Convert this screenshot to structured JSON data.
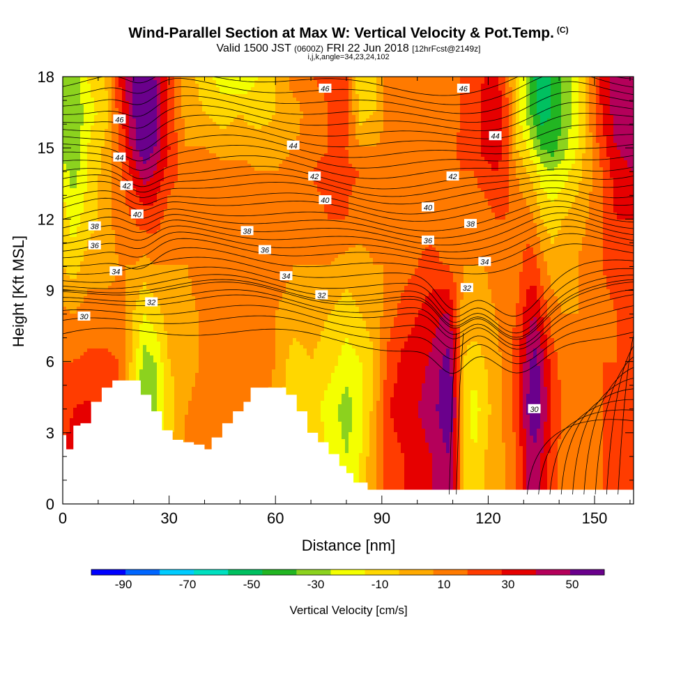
{
  "header": {
    "title": "Wind-Parallel Section at Max W: Vertical Velocity & Pot.Temp.",
    "title_mark": "(C)",
    "subtitle_valid": "Valid 1500 JST",
    "subtitle_utc": "(0600Z)",
    "subtitle_date": "FRI 22 Jun 2018",
    "subtitle_fcst": "[12hrFcst@2149z]",
    "indices": "i,j,k,angle=34,23,24,102"
  },
  "chart_data": {
    "type": "heatmap",
    "title": "Wind-Parallel Section at Max W: Vertical Velocity & Pot.Temp.",
    "xlabel": "Distance [nm]",
    "ylabel": "Height [Kft MSL]",
    "xlim": [
      0,
      161
    ],
    "ylim": [
      0,
      18
    ],
    "x_ticks": [
      "0",
      "30",
      "60",
      "90",
      "120",
      "150"
    ],
    "y_ticks": [
      "0",
      "3",
      "6",
      "9",
      "12",
      "15",
      "18"
    ],
    "colorbar": {
      "label": "Vertical Velocity [cm/s]",
      "tick_labels": [
        "-90",
        "-70",
        "-50",
        "-30",
        "-10",
        "10",
        "30",
        "50"
      ],
      "bins": [
        -100,
        -90,
        -80,
        -70,
        -60,
        -50,
        -40,
        -30,
        -20,
        -10,
        0,
        10,
        20,
        30,
        40,
        50,
        60
      ],
      "colors": [
        "#0000ff",
        "#0066ff",
        "#00ccff",
        "#00e0c0",
        "#00c060",
        "#22b522",
        "#8cd21e",
        "#f4ff00",
        "#ffd700",
        "#ffaa00",
        "#ff7a00",
        "#ff3c00",
        "#e60000",
        "#b4005a",
        "#6a008c"
      ]
    },
    "velocity_columns": [
      {
        "x": 0,
        "w": [
          20,
          20,
          18,
          10,
          2,
          -10,
          -15,
          -25,
          -35,
          -35,
          -30
        ]
      },
      {
        "x": 3,
        "w": [
          22,
          22,
          20,
          10,
          0,
          -15,
          -25,
          -35,
          -40,
          -40,
          -38
        ]
      },
      {
        "x": 7,
        "w": [
          22,
          22,
          22,
          12,
          5,
          -5,
          -15,
          -20,
          -20,
          -25,
          -20
        ]
      },
      {
        "x": 12,
        "w": [
          15,
          15,
          18,
          12,
          5,
          -5,
          -5,
          -5,
          -8,
          -15,
          -10
        ]
      },
      {
        "x": 16,
        "w": [
          5,
          5,
          8,
          10,
          5,
          0,
          5,
          5,
          10,
          15,
          20
        ]
      },
      {
        "x": 20,
        "w": [
          -10,
          -10,
          -20,
          -15,
          -10,
          0,
          10,
          25,
          35,
          40,
          45
        ]
      },
      {
        "x": 23,
        "w": [
          -30,
          -30,
          -40,
          -35,
          -20,
          -5,
          15,
          35,
          50,
          55,
          50
        ]
      },
      {
        "x": 26,
        "w": [
          -25,
          -25,
          -35,
          -30,
          -15,
          0,
          15,
          30,
          40,
          45,
          40
        ]
      },
      {
        "x": 30,
        "w": [
          -10,
          -10,
          -15,
          -10,
          -5,
          0,
          5,
          15,
          20,
          15,
          15
        ]
      },
      {
        "x": 35,
        "w": [
          2,
          2,
          0,
          -5,
          -3,
          0,
          5,
          5,
          0,
          -5,
          -5
        ]
      },
      {
        "x": 40,
        "w": [
          8,
          8,
          5,
          2,
          2,
          5,
          10,
          8,
          0,
          -10,
          -15
        ]
      },
      {
        "x": 45,
        "w": [
          10,
          10,
          10,
          5,
          5,
          10,
          10,
          5,
          -5,
          -15,
          -25
        ]
      },
      {
        "x": 50,
        "w": [
          5,
          5,
          8,
          8,
          5,
          5,
          8,
          5,
          -5,
          -10,
          -30
        ]
      },
      {
        "x": 55,
        "w": [
          0,
          0,
          5,
          8,
          5,
          5,
          5,
          0,
          -5,
          -15,
          -20
        ]
      },
      {
        "x": 60,
        "w": [
          -5,
          -5,
          -5,
          0,
          0,
          5,
          5,
          0,
          -5,
          -10,
          -10
        ]
      },
      {
        "x": 65,
        "w": [
          -15,
          -15,
          -20,
          -15,
          -5,
          0,
          0,
          5,
          0,
          -5,
          5
        ]
      },
      {
        "x": 70,
        "w": [
          -10,
          -10,
          -15,
          -10,
          -5,
          0,
          5,
          10,
          5,
          5,
          10
        ]
      },
      {
        "x": 75,
        "w": [
          -20,
          -20,
          -25,
          -15,
          -10,
          0,
          10,
          15,
          10,
          10,
          12
        ]
      },
      {
        "x": 80,
        "w": [
          -30,
          -30,
          -35,
          -25,
          -15,
          -5,
          10,
          12,
          10,
          15,
          15
        ]
      },
      {
        "x": 84,
        "w": [
          -20,
          -20,
          -25,
          -20,
          -10,
          -5,
          5,
          10,
          0,
          -15,
          -20
        ]
      },
      {
        "x": 88,
        "w": [
          0,
          0,
          -5,
          -10,
          -5,
          0,
          5,
          8,
          0,
          -10,
          -15
        ]
      },
      {
        "x": 92,
        "w": [
          15,
          15,
          20,
          15,
          5,
          0,
          5,
          8,
          5,
          5,
          10
        ]
      },
      {
        "x": 96,
        "w": [
          20,
          20,
          25,
          22,
          15,
          5,
          5,
          5,
          5,
          5,
          8
        ]
      },
      {
        "x": 100,
        "w": [
          25,
          25,
          30,
          25,
          20,
          10,
          5,
          5,
          5,
          5,
          5
        ]
      },
      {
        "x": 104,
        "w": [
          30,
          30,
          35,
          32,
          25,
          15,
          5,
          5,
          5,
          5,
          5
        ]
      },
      {
        "x": 107,
        "w": [
          35,
          35,
          45,
          40,
          30,
          10,
          5,
          5,
          5,
          5,
          5
        ]
      },
      {
        "x": 109,
        "w": [
          40,
          40,
          55,
          45,
          30,
          10,
          5,
          5,
          5,
          5,
          5
        ]
      },
      {
        "x": 111,
        "w": [
          20,
          20,
          25,
          20,
          15,
          5,
          5,
          8,
          10,
          5,
          5
        ]
      },
      {
        "x": 113,
        "w": [
          -10,
          -10,
          -15,
          -10,
          -5,
          0,
          5,
          10,
          15,
          15,
          15
        ]
      },
      {
        "x": 116,
        "w": [
          -20,
          -20,
          -25,
          -15,
          -5,
          0,
          5,
          10,
          15,
          15,
          15
        ]
      },
      {
        "x": 119,
        "w": [
          -10,
          -10,
          -15,
          -10,
          -5,
          0,
          5,
          15,
          25,
          25,
          20
        ]
      },
      {
        "x": 122,
        "w": [
          -5,
          -5,
          -5,
          -5,
          0,
          5,
          10,
          20,
          30,
          30,
          25
        ]
      },
      {
        "x": 125,
        "w": [
          0,
          0,
          5,
          5,
          5,
          5,
          10,
          15,
          15,
          15,
          10
        ]
      },
      {
        "x": 128,
        "w": [
          10,
          10,
          15,
          15,
          10,
          5,
          5,
          0,
          -10,
          -15,
          -15
        ]
      },
      {
        "x": 131,
        "w": [
          30,
          30,
          40,
          35,
          25,
          15,
          5,
          -10,
          -20,
          -35,
          -35
        ]
      },
      {
        "x": 133,
        "w": [
          35,
          35,
          55,
          45,
          30,
          15,
          0,
          -15,
          -30,
          -45,
          -50
        ]
      },
      {
        "x": 135,
        "w": [
          30,
          30,
          40,
          35,
          20,
          5,
          -10,
          -25,
          -40,
          -55,
          -55
        ]
      },
      {
        "x": 138,
        "w": [
          15,
          15,
          20,
          15,
          5,
          -5,
          -15,
          -30,
          -45,
          -50,
          -50
        ]
      },
      {
        "x": 141,
        "w": [
          5,
          5,
          10,
          5,
          0,
          -5,
          -10,
          -25,
          -35,
          -40,
          -40
        ]
      },
      {
        "x": 145,
        "w": [
          5,
          5,
          5,
          5,
          0,
          0,
          -5,
          -15,
          -20,
          -25,
          -25
        ]
      },
      {
        "x": 148,
        "w": [
          8,
          8,
          10,
          5,
          5,
          5,
          0,
          -5,
          -5,
          -5,
          -5
        ]
      },
      {
        "x": 152,
        "w": [
          10,
          10,
          10,
          10,
          5,
          10,
          10,
          10,
          15,
          20,
          25
        ]
      },
      {
        "x": 156,
        "w": [
          12,
          12,
          15,
          10,
          10,
          15,
          20,
          25,
          30,
          35,
          35
        ]
      },
      {
        "x": 161,
        "w": [
          15,
          15,
          15,
          10,
          10,
          15,
          20,
          30,
          35,
          40,
          40
        ]
      }
    ],
    "velocity_levels_kft": [
      0,
      2,
      4,
      6,
      8,
      10,
      12,
      14,
      15,
      16.5,
      18
    ],
    "isentropes": {
      "labels": [
        "30",
        "32",
        "34",
        "36",
        "38",
        "40",
        "42",
        "44",
        "46"
      ],
      "label_values": [
        30,
        32,
        34,
        36,
        38,
        40,
        42,
        44,
        46
      ],
      "label_points": [
        {
          "v": 30,
          "x": 6,
          "y": 7.9
        },
        {
          "v": 32,
          "x": 25,
          "y": 8.5
        },
        {
          "v": 32,
          "x": 73,
          "y": 8.8
        },
        {
          "v": 32,
          "x": 114,
          "y": 9.1
        },
        {
          "v": 34,
          "x": 15,
          "y": 9.8
        },
        {
          "v": 34,
          "x": 63,
          "y": 9.6
        },
        {
          "v": 34,
          "x": 119,
          "y": 10.2
        },
        {
          "v": 36,
          "x": 9,
          "y": 10.9
        },
        {
          "v": 36,
          "x": 57,
          "y": 10.7
        },
        {
          "v": 36,
          "x": 103,
          "y": 11.1
        },
        {
          "v": 38,
          "x": 9,
          "y": 11.7
        },
        {
          "v": 38,
          "x": 52,
          "y": 11.5
        },
        {
          "v": 38,
          "x": 115,
          "y": 11.8
        },
        {
          "v": 40,
          "x": 21,
          "y": 12.2
        },
        {
          "v": 40,
          "x": 74,
          "y": 12.8
        },
        {
          "v": 40,
          "x": 103,
          "y": 12.5
        },
        {
          "v": 42,
          "x": 18,
          "y": 13.4
        },
        {
          "v": 42,
          "x": 71,
          "y": 13.8
        },
        {
          "v": 42,
          "x": 110,
          "y": 13.8
        },
        {
          "v": 44,
          "x": 16,
          "y": 14.6
        },
        {
          "v": 44,
          "x": 65,
          "y": 15.1
        },
        {
          "v": 44,
          "x": 122,
          "y": 15.5
        },
        {
          "v": 46,
          "x": 16,
          "y": 16.2
        },
        {
          "v": 46,
          "x": 74,
          "y": 17.5
        },
        {
          "v": 46,
          "x": 113,
          "y": 17.5
        },
        {
          "v": 30,
          "x": 133,
          "y": 4
        }
      ],
      "base_heights_kft": [
        7.0,
        7.5,
        7.9,
        8.3,
        8.5,
        8.8,
        8.9,
        9.1,
        9.4,
        9.8,
        10.2,
        10.6,
        10.9,
        11.2,
        11.5,
        11.8,
        12.1,
        12.5,
        12.8,
        13.2,
        13.5,
        13.8,
        14.2,
        14.6,
        15.0,
        15.4,
        15.8,
        16.2,
        16.6,
        17.0,
        17.4,
        17.8
      ]
    },
    "terrain": {
      "x": [
        0,
        1,
        3,
        5,
        8,
        11,
        14,
        19,
        22,
        25,
        28,
        31,
        34,
        37,
        40,
        42,
        45,
        48,
        51,
        53,
        56,
        61,
        63,
        66,
        69,
        72,
        75,
        78,
        80,
        82,
        86,
        161
      ],
      "top_kft": [
        2.9,
        2.3,
        3.3,
        3.4,
        4.3,
        4.9,
        5.2,
        5.2,
        4.6,
        3.9,
        3.1,
        2.7,
        2.6,
        2.5,
        2.3,
        2.8,
        3.4,
        3.9,
        4.3,
        4.9,
        4.9,
        4.9,
        4.6,
        3.9,
        3.0,
        2.6,
        2.1,
        1.6,
        1.3,
        0.9,
        0.6,
        0.4
      ]
    }
  }
}
